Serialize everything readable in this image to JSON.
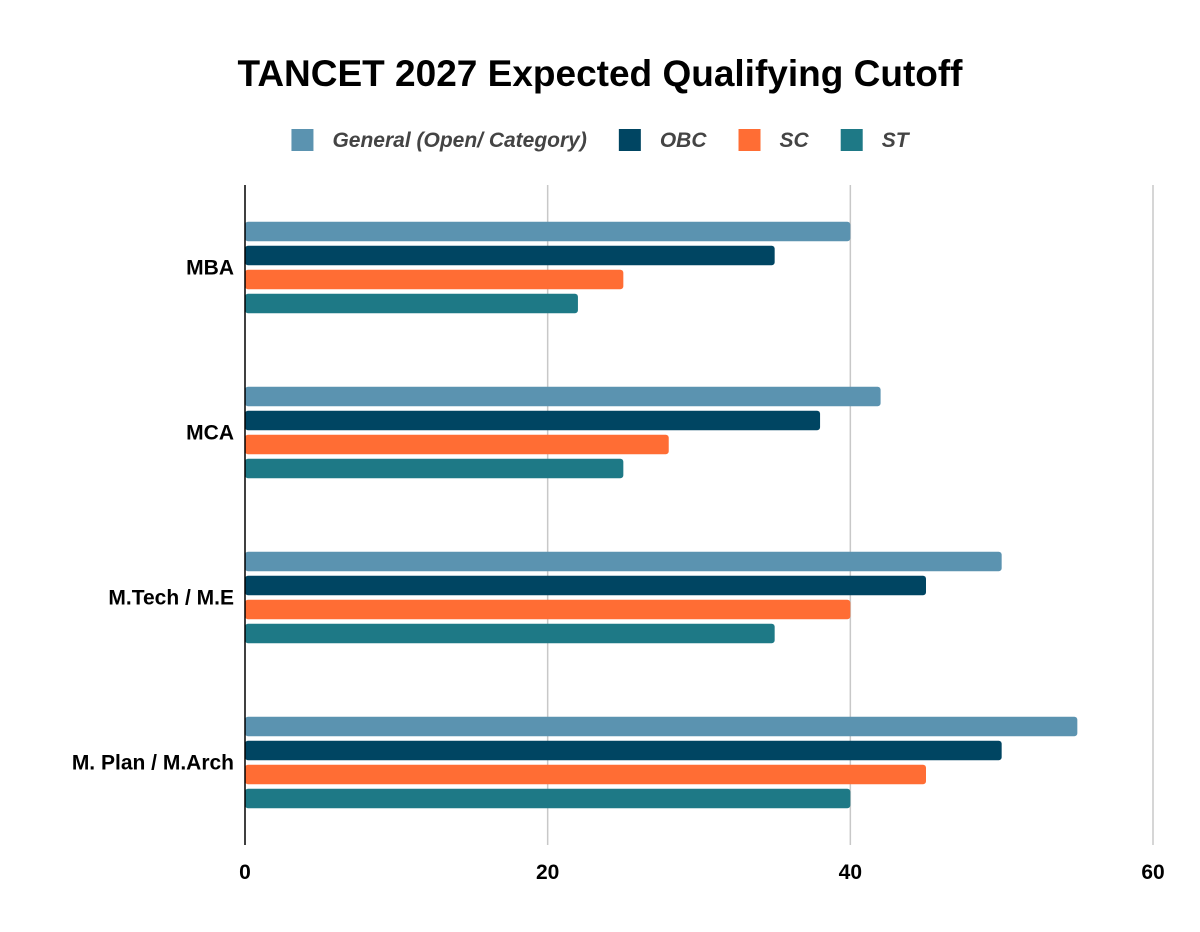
{
  "chart_data": {
    "type": "bar",
    "orientation": "horizontal",
    "title": "TANCET 2027 Expected Qualifying Cutoff",
    "categories": [
      "MBA",
      "MCA",
      "M.Tech / M.E",
      "M. Plan / M.Arch"
    ],
    "series": [
      {
        "name": "General (Open/ Category)",
        "color": "#5b93b0",
        "values": [
          40,
          42,
          50,
          55
        ]
      },
      {
        "name": "OBC",
        "color": "#004562",
        "values": [
          35,
          38,
          45,
          50
        ]
      },
      {
        "name": "SC",
        "color": "#ff6d34",
        "values": [
          25,
          28,
          40,
          45
        ]
      },
      {
        "name": "ST",
        "color": "#1e7986",
        "values": [
          22,
          25,
          35,
          40
        ]
      }
    ],
    "xlim": [
      0,
      60
    ],
    "xticks": [
      0,
      20,
      40,
      60
    ],
    "xlabel": "",
    "ylabel": "",
    "grid": true,
    "legend_position": "top"
  }
}
